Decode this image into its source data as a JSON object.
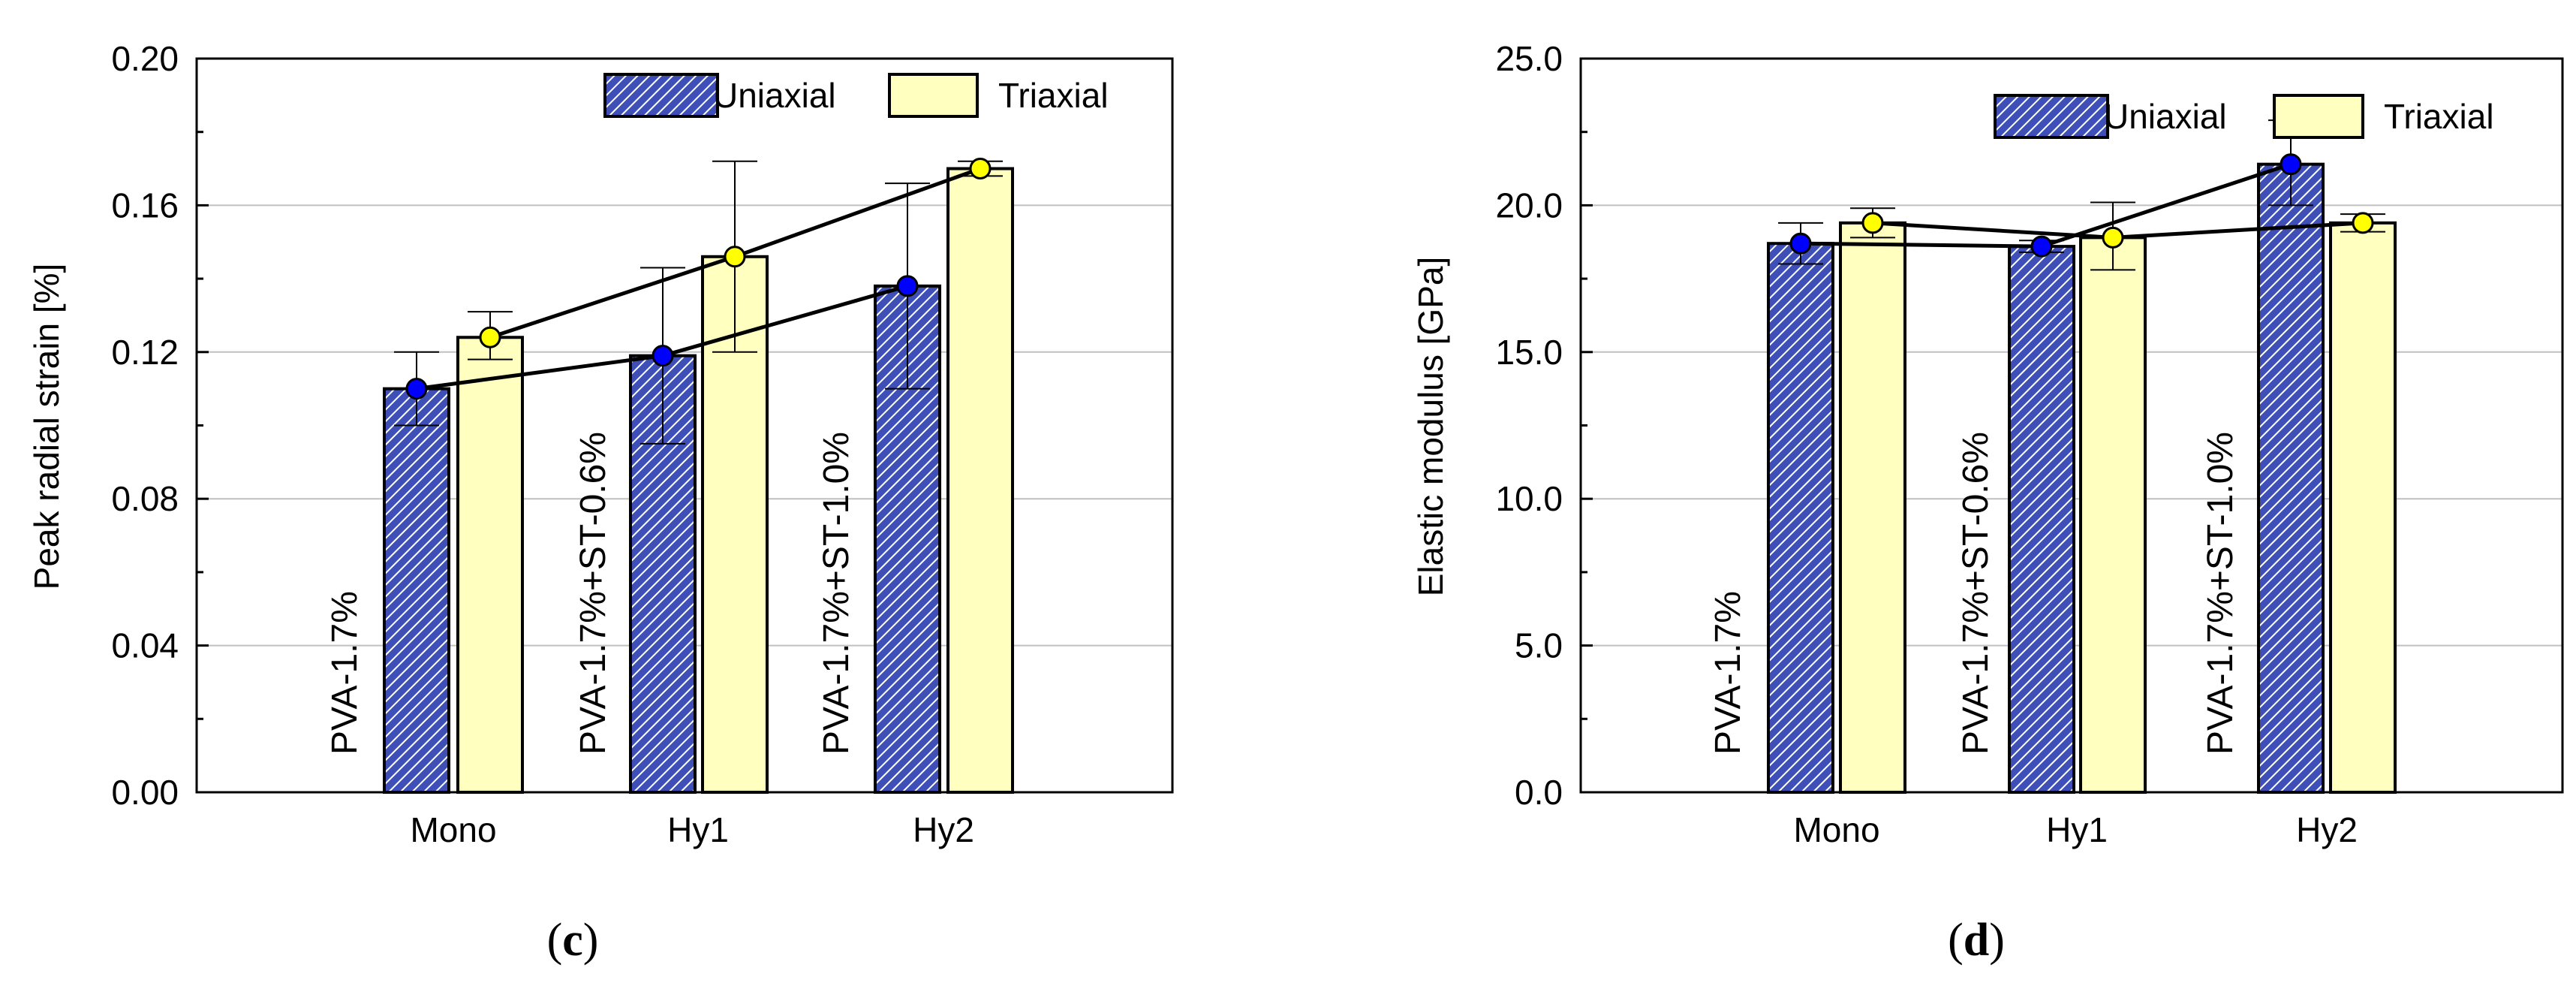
{
  "figure": {
    "colors": {
      "uniaxial_fill": "#3f4fb8",
      "uniaxial_hatch": "#ffffff",
      "triaxial_fill": "#ffffc0",
      "uniaxial_marker": "#0000ff",
      "triaxial_marker": "#ffff00",
      "grid": "#c0c0c0",
      "axis": "#000000"
    }
  },
  "chart_data": [
    {
      "type": "bar",
      "panel_label": "(c)",
      "panel_label_parts": [
        "(",
        "c",
        ")"
      ],
      "xlabel": "",
      "ylabel": "Peak radial strain [%]",
      "categories": [
        "Mono",
        "Hy1",
        "Hy2"
      ],
      "annotations": [
        "PVA-1.7%",
        "PVA-1.7%+ST-0.6%",
        "PVA-1.7%+ST-1.0%"
      ],
      "ylim": [
        0,
        0.2
      ],
      "yticks": [
        0,
        0.04,
        0.08,
        0.12,
        0.16,
        0.2
      ],
      "yticklabels": [
        "0.00",
        "0.04",
        "0.08",
        "0.12",
        "0.16",
        "0.20"
      ],
      "grid": "horizontal",
      "legend": "top-right",
      "series": [
        {
          "name": "Uniaxial",
          "values": [
            0.11,
            0.119,
            0.138
          ],
          "err_low": [
            0.1,
            0.095,
            0.11
          ],
          "err_high": [
            0.12,
            0.143,
            0.166
          ]
        },
        {
          "name": "Triaxial",
          "values": [
            0.124,
            0.146,
            0.17
          ],
          "err_low": [
            0.118,
            0.12,
            0.168
          ],
          "err_high": [
            0.131,
            0.172,
            0.172
          ]
        }
      ]
    },
    {
      "type": "bar",
      "panel_label": "(d)",
      "panel_label_parts": [
        "(",
        "d",
        ")"
      ],
      "xlabel": "",
      "ylabel": "Elastic modulus [GPa]",
      "categories": [
        "Mono",
        "Hy1",
        "Hy2"
      ],
      "annotations": [
        "PVA-1.7%",
        "PVA-1.7%+ST-0.6%",
        "PVA-1.7%+ST-1.0%"
      ],
      "ylim": [
        0,
        25
      ],
      "yticks": [
        0,
        5,
        10,
        15,
        20,
        25
      ],
      "yticklabels": [
        "0.0",
        "5.0",
        "10.0",
        "15.0",
        "20.0",
        "25.0"
      ],
      "grid": "horizontal",
      "legend": "top-right",
      "series": [
        {
          "name": "Uniaxial",
          "values": [
            18.7,
            18.6,
            21.4
          ],
          "err_low": [
            18.0,
            18.4,
            20.0
          ],
          "err_high": [
            19.4,
            18.8,
            22.9
          ]
        },
        {
          "name": "Triaxial",
          "values": [
            19.4,
            18.9,
            19.4
          ],
          "err_low": [
            18.9,
            17.8,
            19.1
          ],
          "err_high": [
            19.9,
            20.1,
            19.7
          ]
        }
      ]
    }
  ]
}
